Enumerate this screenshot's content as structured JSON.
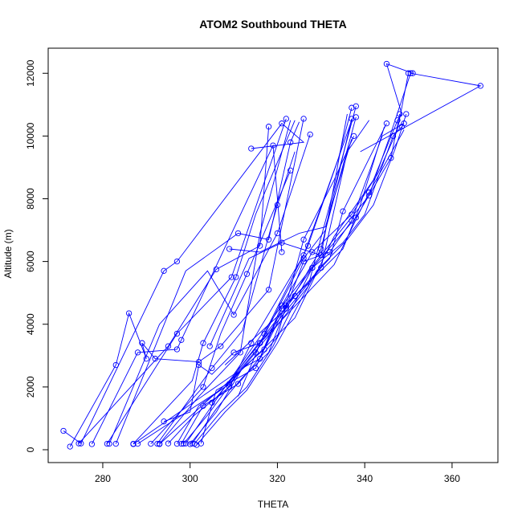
{
  "chart_data": {
    "type": "line",
    "title": "ATOM2 Southbound THETA",
    "xlabel": "THETA",
    "ylabel": "Altitude (m)",
    "xlim": [
      267.5,
      370.5
    ],
    "ylim": [
      -410,
      12800
    ],
    "xticks": [
      280,
      300,
      320,
      340,
      360
    ],
    "yticks": [
      0,
      2000,
      4000,
      6000,
      8000,
      10000,
      12000
    ],
    "grid": false,
    "markers": "open circles",
    "color": "#0000ff",
    "series": [
      {
        "x": [
          271,
          275,
          294,
          297,
          321,
          326,
          314
        ],
        "y": [
          600,
          200,
          5700,
          6000,
          10400,
          9800,
          9600
        ],
        "markers": [
          true,
          true,
          true,
          true,
          true,
          false,
          true
        ]
      },
      {
        "x": [
          272.5,
          283,
          286,
          290,
          289,
          292,
          302,
          307,
          318,
          326
        ],
        "y": [
          100,
          2700,
          4350,
          2900,
          3400,
          2900,
          2800,
          3300,
          5100,
          10550
        ],
        "markers": [
          true,
          true,
          true,
          true,
          true,
          true,
          true,
          true,
          true,
          true
        ]
      },
      {
        "x": [
          274.5,
          295,
          306,
          316,
          318
        ],
        "y": [
          200,
          3300,
          5750,
          6500,
          10300
        ],
        "markers": [
          true,
          true,
          true,
          true,
          true
        ]
      },
      {
        "x": [
          277.5,
          288,
          297,
          298,
          319,
          321
        ],
        "y": [
          180,
          3100,
          3200,
          3500,
          9700,
          6300
        ],
        "markers": [
          true,
          true,
          true,
          true,
          true,
          true
        ]
      },
      {
        "x": [
          281,
          297,
          309.5,
          322
        ],
        "y": [
          190,
          3700,
          5500,
          10550
        ],
        "markers": [
          true,
          true,
          true,
          true
        ]
      },
      {
        "x": [
          281.5,
          293,
          304,
          310,
          320,
          327.5
        ],
        "y": [
          190,
          4000,
          5700,
          4300,
          6900,
          10050
        ],
        "markers": [
          true,
          false,
          false,
          true,
          true,
          true
        ]
      },
      {
        "x": [
          283,
          299,
          311,
          318,
          323,
          325
        ],
        "y": [
          190,
          5700,
          6900,
          6700,
          9800,
          10450
        ],
        "markers": [
          true,
          false,
          true,
          true,
          true,
          false
        ]
      },
      {
        "x": [
          287,
          300.5,
          303,
          310.5,
          315,
          324
        ],
        "y": [
          190,
          2200,
          3400,
          5500,
          7500,
          10500
        ],
        "markers": [
          true,
          false,
          true,
          true,
          false,
          false
        ]
      },
      {
        "x": [
          291,
          303,
          307,
          313,
          323
        ],
        "y": [
          190,
          2000,
          3700,
          5600,
          8900
        ],
        "markers": [
          true,
          true,
          false,
          true,
          true
        ]
      },
      {
        "x": [
          292.5,
          305,
          312,
          320,
          324
        ],
        "y": [
          190,
          2600,
          3800,
          7800,
          9500
        ],
        "markers": [
          true,
          true,
          false,
          true,
          false
        ]
      },
      {
        "x": [
          293,
          302,
          311.5,
          316,
          323
        ],
        "y": [
          190,
          1700,
          3100,
          6900,
          10500
        ],
        "markers": [
          true,
          false,
          true,
          false,
          false
        ]
      },
      {
        "x": [
          294,
          300,
          302,
          305,
          310,
          316,
          330,
          336,
          341
        ],
        "y": [
          900,
          1200,
          2700,
          2400,
          3100,
          3400,
          5800,
          9500,
          10500
        ],
        "markers": [
          true,
          false,
          true,
          false,
          true,
          true,
          true,
          false,
          false
        ]
      },
      {
        "x": [
          295,
          301,
          309,
          314,
          326,
          334,
          337
        ],
        "y": [
          200,
          1100,
          2000,
          3400,
          6200,
          9300,
          10900
        ],
        "markers": [
          true,
          false,
          true,
          true,
          true,
          false,
          true
        ]
      },
      {
        "x": [
          297,
          302,
          309,
          315,
          326,
          331,
          338
        ],
        "y": [
          190,
          1400,
          2100,
          3100,
          6100,
          7000,
          10600
        ],
        "markers": [
          true,
          false,
          true,
          true,
          true,
          false,
          true
        ]
      },
      {
        "x": [
          298,
          303,
          311,
          320,
          326,
          333,
          337.5
        ],
        "y": [
          190,
          1400,
          2100,
          3600,
          6700,
          8600,
          10000
        ],
        "markers": [
          true,
          true,
          true,
          false,
          true,
          false,
          true
        ]
      },
      {
        "x": [
          298.5,
          304,
          312,
          316,
          321,
          324,
          332,
          335,
          345
        ],
        "y": [
          190,
          1100,
          2600,
          2900,
          4500,
          4900,
          6100,
          7600,
          10400
        ],
        "markers": [
          true,
          false,
          false,
          true,
          true,
          true,
          false,
          true,
          true
        ]
      },
      {
        "x": [
          300,
          306,
          312,
          317,
          322,
          328,
          338,
          346,
          348
        ],
        "y": [
          180,
          1200,
          2600,
          3200,
          4600,
          5800,
          7400,
          9300,
          10700
        ],
        "markers": [
          true,
          false,
          false,
          true,
          true,
          true,
          true,
          true,
          true
        ]
      },
      {
        "x": [
          300.5,
          306,
          312,
          318,
          326,
          332,
          337,
          344,
          349
        ],
        "y": [
          200,
          1300,
          2300,
          3100,
          6000,
          6300,
          7300,
          10000,
          10400
        ],
        "markers": [
          true,
          false,
          false,
          false,
          true,
          true,
          true,
          false,
          true
        ]
      },
      {
        "x": [
          301,
          307,
          313,
          319,
          328,
          335,
          340,
          346.5,
          348.5
        ],
        "y": [
          190,
          1200,
          2000,
          3300,
          5800,
          6600,
          7500,
          10000,
          10300
        ],
        "markers": [
          true,
          false,
          false,
          false,
          true,
          false,
          false,
          true,
          true
        ]
      },
      {
        "x": [
          301.5,
          308,
          313,
          320,
          329,
          336,
          342,
          347,
          349.5
        ],
        "y": [
          150,
          1200,
          1900,
          3400,
          5700,
          6700,
          7800,
          9600,
          10700
        ],
        "markers": [
          true,
          false,
          false,
          false,
          false,
          false,
          false,
          false,
          true
        ]
      },
      {
        "x": [
          302.5,
          306,
          315,
          321,
          328,
          337,
          343,
          347.5,
          350
        ],
        "y": [
          200,
          1900,
          2600,
          4600,
          6300,
          7500,
          8800,
          10200,
          12000
        ],
        "markers": [
          true,
          false,
          true,
          true,
          true,
          true,
          false,
          false,
          true
        ]
      },
      {
        "x": [
          293,
          313,
          324,
          333,
          342,
          347.5,
          348.5,
          345,
          351
        ],
        "y": [
          180,
          2700,
          4200,
          6800,
          8600,
          10500,
          10700,
          12300,
          12000
        ],
        "markers": [
          true,
          false,
          false,
          false,
          false,
          true,
          false,
          true,
          true
        ]
      },
      {
        "x": [
          287,
          310,
          320,
          330,
          341,
          346,
          350.5,
          366.5,
          339
        ],
        "y": [
          180,
          2400,
          4400,
          6200,
          8100,
          10100,
          12000,
          11600,
          9500
        ],
        "markers": [
          true,
          false,
          false,
          true,
          true,
          false,
          true,
          true,
          false
        ]
      },
      {
        "x": [
          288,
          308,
          324,
          335,
          339,
          344.5
        ],
        "y": [
          190,
          2000,
          4900,
          6400,
          7800,
          10300
        ],
        "markers": [
          true,
          false,
          true,
          false,
          false,
          false
        ]
      },
      {
        "x": [
          299,
          309,
          316,
          333,
          341,
          349
        ],
        "y": [
          200,
          2200,
          3400,
          5900,
          8200,
          10200
        ],
        "markers": [
          true,
          false,
          true,
          false,
          true,
          false
        ]
      },
      {
        "x": [
          305,
          319,
          327,
          338
        ],
        "y": [
          1500,
          3800,
          5200,
          10950
        ],
        "markers": [
          true,
          false,
          false,
          true
        ]
      },
      {
        "x": [
          308,
          322,
          330,
          337
        ],
        "y": [
          2700,
          4500,
          6400,
          10550
        ],
        "markers": [
          false,
          true,
          true,
          true
        ]
      },
      {
        "x": [
          311,
          317,
          327,
          337
        ],
        "y": [
          1700,
          3700,
          6500,
          10500
        ],
        "markers": [
          false,
          true,
          true,
          false
        ]
      },
      {
        "x": [
          304.5,
          313.5,
          321,
          330,
          336
        ],
        "y": [
          3300,
          6100,
          6600,
          6200,
          10700
        ],
        "markers": [
          true,
          false,
          true,
          true,
          false
        ]
      },
      {
        "x": [
          309,
          316,
          325,
          331,
          337
        ],
        "y": [
          6400,
          6300,
          6900,
          7100,
          9900
        ],
        "markers": [
          true,
          false,
          false,
          false,
          false
        ]
      }
    ]
  }
}
